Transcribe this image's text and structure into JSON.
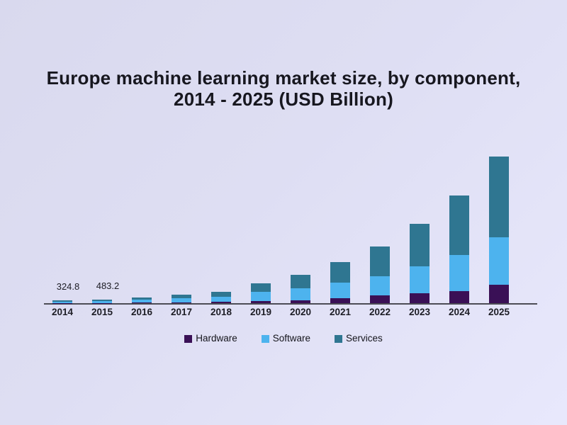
{
  "title": {
    "line1": "Europe machine learning market size, by component,",
    "line2": "2014 - 2025 (USD Billion)"
  },
  "chart_data": {
    "type": "bar",
    "stacked": true,
    "title": "Europe machine learning market size, by component, 2014 - 2025 (USD Billion)",
    "categories": [
      "2014",
      "2015",
      "2016",
      "2017",
      "2018",
      "2019",
      "2020",
      "2021",
      "2022",
      "2023",
      "2024",
      "2025"
    ],
    "series": [
      {
        "name": "Hardware",
        "color": "#3a1056",
        "values": [
          24.8,
          33.2,
          60,
          90,
          175,
          270,
          365,
          635,
          1000,
          1270,
          1545,
          2360
        ]
      },
      {
        "name": "Software",
        "color": "#4db3ee",
        "values": [
          185,
          270,
          390,
          550,
          640,
          1180,
          1545,
          2000,
          2455,
          3450,
          4635,
          6090
        ]
      },
      {
        "name": "Services",
        "color": "#2f7691",
        "values": [
          115,
          180,
          310,
          410,
          635,
          1080,
          1725,
          2635,
          3815,
          5450,
          7635,
          10360
        ]
      }
    ],
    "bar_labels": [
      {
        "category": "2014",
        "text": "324.8"
      },
      {
        "category": "2015",
        "text": "483.2"
      }
    ],
    "xlabel": "",
    "ylabel": "",
    "ylim": [
      0,
      20700
    ],
    "grid": false,
    "axis_labels_visible": "x-only",
    "legend_position": "bottom",
    "legend": [
      "Hardware",
      "Software",
      "Services"
    ],
    "values_note": "Only the 2014 (324.8) and 2015 (483.2) totals are labeled in the image; all other component values are estimated from bar heights."
  },
  "colors": {
    "background_start": "#d9d9ee",
    "background_end": "#e8e8fc",
    "title_text": "#17171f",
    "axis_line": "#4c4c55",
    "axis_label_text": "#1e1e26",
    "hardware": "#3a1056",
    "software": "#4db3ee",
    "services": "#2f7691"
  }
}
